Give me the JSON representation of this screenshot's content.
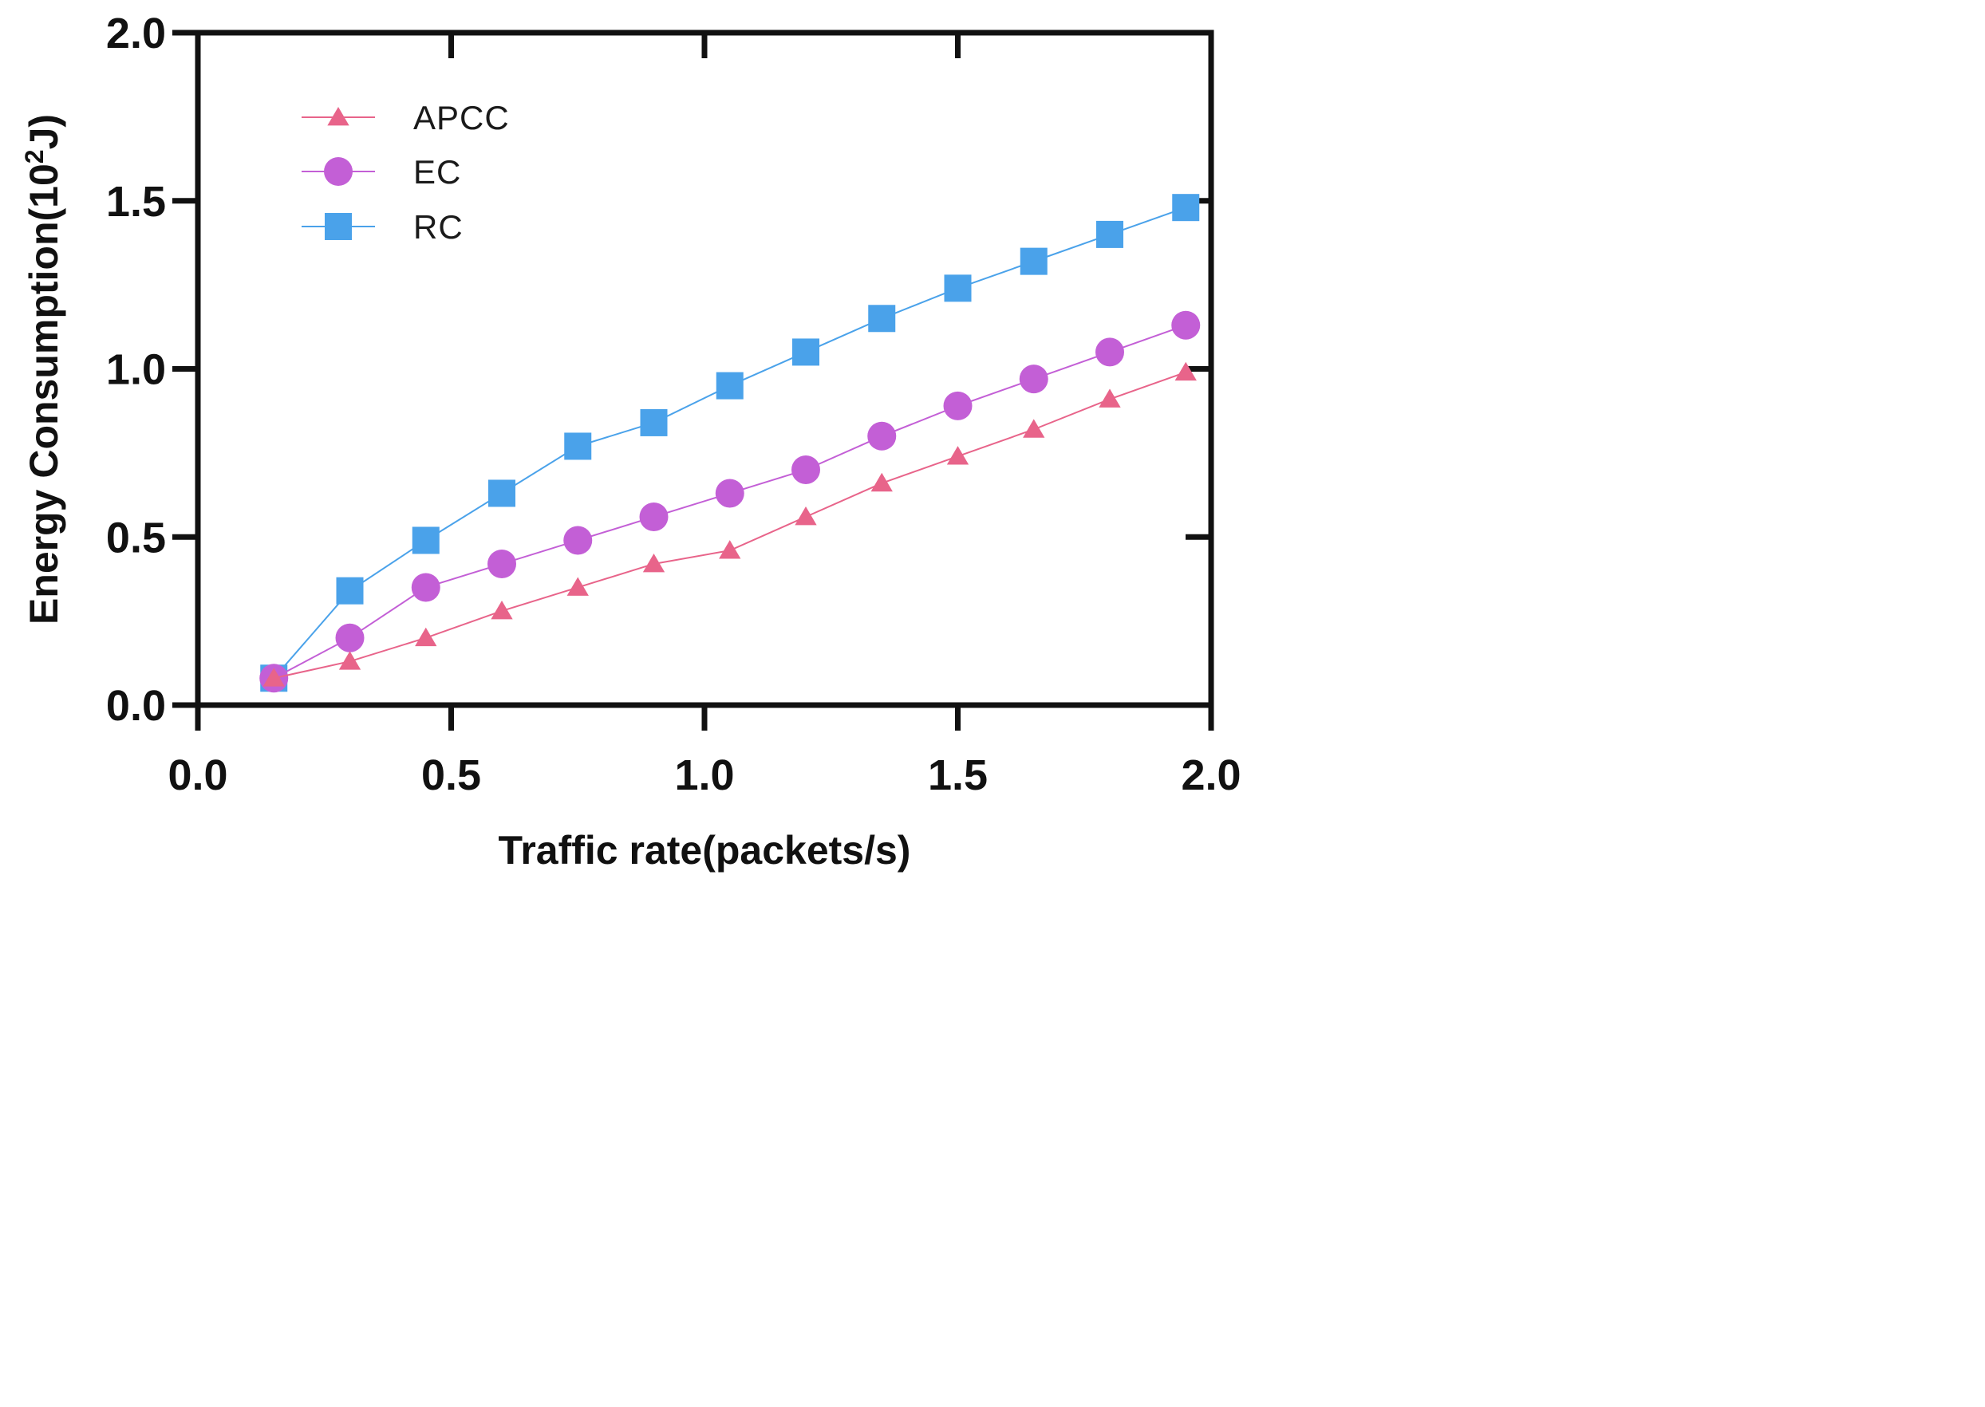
{
  "chart_data": {
    "type": "line",
    "title": "",
    "xlabel": "Traffic rate(packets/s)",
    "ylabel": "Energy Consumption(10",
    "ylabel_superscript": "2",
    "ylabel_suffix": "J)",
    "xlim": [
      0.0,
      2.0
    ],
    "ylim": [
      0.0,
      2.0
    ],
    "xticks": [
      0.0,
      0.5,
      1.0,
      1.5,
      2.0
    ],
    "yticks": [
      0.0,
      0.5,
      1.0,
      1.5,
      2.0
    ],
    "xtick_labels": [
      "0.0",
      "0.5",
      "1.0",
      "1.5",
      "2.0"
    ],
    "ytick_labels": [
      "0.0",
      "0.5",
      "1.0",
      "1.5",
      "2.0"
    ],
    "grid": false,
    "legend_position": "top-left",
    "x": [
      0.15,
      0.3,
      0.45,
      0.6,
      0.75,
      0.9,
      1.05,
      1.2,
      1.35,
      1.5,
      1.65,
      1.8,
      1.95
    ],
    "series": [
      {
        "name": "APCC",
        "marker": "triangle",
        "color": "#e8648a",
        "values": [
          0.08,
          0.13,
          0.2,
          0.28,
          0.35,
          0.42,
          0.46,
          0.56,
          0.66,
          0.74,
          0.82,
          0.91,
          0.99
        ]
      },
      {
        "name": "EC",
        "marker": "circle",
        "color": "#c35fd6",
        "values": [
          0.08,
          0.2,
          0.35,
          0.42,
          0.49,
          0.56,
          0.63,
          0.7,
          0.8,
          0.89,
          0.97,
          1.05,
          1.13
        ]
      },
      {
        "name": "RC",
        "marker": "square",
        "color": "#4aa2ea",
        "values": [
          0.08,
          0.34,
          0.49,
          0.63,
          0.77,
          0.84,
          0.95,
          1.05,
          1.15,
          1.24,
          1.32,
          1.4,
          1.48
        ]
      }
    ]
  }
}
